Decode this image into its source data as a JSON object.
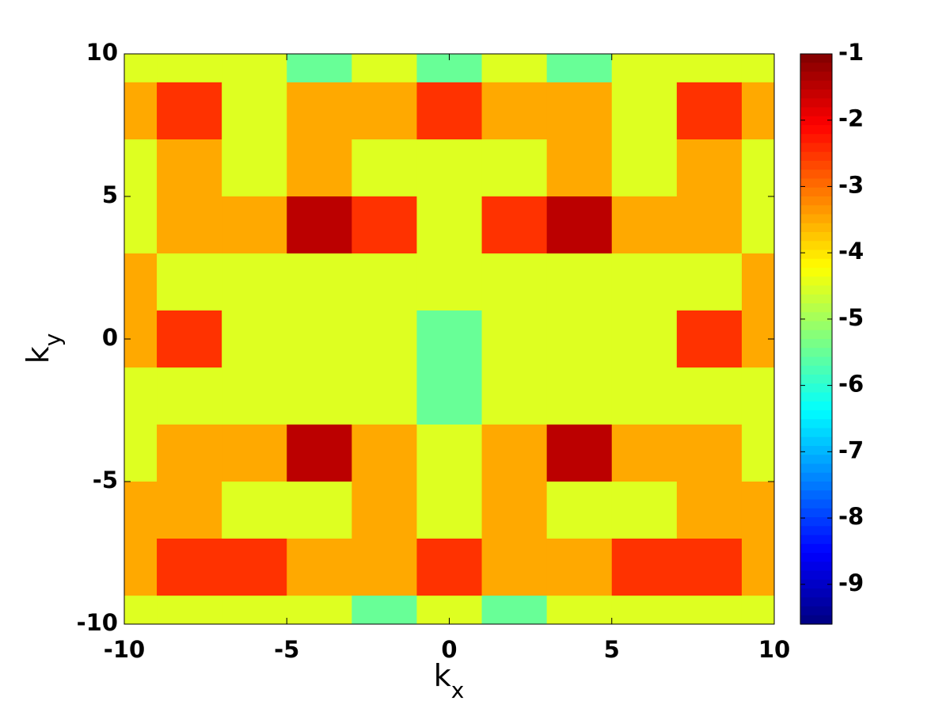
{
  "chart_data": {
    "type": "contour",
    "xlabel": {
      "text": "k",
      "sub": "x"
    },
    "ylabel": {
      "text": "k",
      "sub": "y"
    },
    "x": [
      -10,
      -8,
      -6,
      -4,
      -2,
      0,
      2,
      4,
      6,
      8,
      10
    ],
    "y": [
      10,
      8,
      6,
      4,
      2,
      0,
      -2,
      -4,
      -6,
      -8,
      -10
    ],
    "z": [
      [
        -4.5,
        -4.5,
        -4.5,
        -5.5,
        -4.5,
        -5.5,
        -4.5,
        -5.5,
        -4.5,
        -4.5,
        -4.5
      ],
      [
        -3.5,
        -2.5,
        -4.5,
        -3.5,
        -3.5,
        -2.5,
        -3.5,
        -3.5,
        -4.5,
        -2.5,
        -3.5
      ],
      [
        -4.5,
        -3.5,
        -4.5,
        -3.5,
        -4.5,
        -4.5,
        -4.5,
        -3.5,
        -4.5,
        -3.5,
        -4.5
      ],
      [
        -4.5,
        -3.5,
        -3.5,
        -1.5,
        -2.5,
        -4.5,
        -2.5,
        -1.5,
        -3.5,
        -3.5,
        -4.5
      ],
      [
        -3.5,
        -4.5,
        -4.5,
        -4.5,
        -4.5,
        -4.5,
        -4.5,
        -4.5,
        -4.5,
        -4.5,
        -3.5
      ],
      [
        -3.5,
        -2.5,
        -4.5,
        -4.5,
        -4.5,
        -5.5,
        -4.5,
        -4.5,
        -4.5,
        -2.5,
        -3.5
      ],
      [
        -4.5,
        -4.5,
        -4.5,
        -4.5,
        -4.5,
        -5.5,
        -4.5,
        -4.5,
        -4.5,
        -4.5,
        -4.5
      ],
      [
        -4.5,
        -3.5,
        -3.5,
        -1.5,
        -3.5,
        -4.5,
        -3.5,
        -1.5,
        -3.5,
        -3.5,
        -4.5
      ],
      [
        -3.5,
        -3.5,
        -4.5,
        -4.5,
        -3.5,
        -4.5,
        -3.5,
        -4.5,
        -4.5,
        -3.5,
        -3.5
      ],
      [
        -3.5,
        -2.5,
        -2.5,
        -3.5,
        -3.5,
        -2.5,
        -3.5,
        -3.5,
        -2.5,
        -2.5,
        -3.5
      ],
      [
        -4.5,
        -4.5,
        -4.5,
        -4.5,
        -5.5,
        -4.5,
        -5.5,
        -4.5,
        -4.5,
        -4.5,
        -4.5
      ]
    ],
    "xlim": [
      -10,
      10
    ],
    "ylim": [
      -10,
      10
    ],
    "xticks": [
      -10,
      -5,
      0,
      5,
      10
    ],
    "yticks": [
      -10,
      -5,
      0,
      5,
      10
    ],
    "clim": [
      -9.6,
      -1
    ],
    "cticks": [
      -9,
      -8,
      -7,
      -6,
      -5,
      -4,
      -3,
      -2,
      -1
    ],
    "colormap": "jet"
  }
}
